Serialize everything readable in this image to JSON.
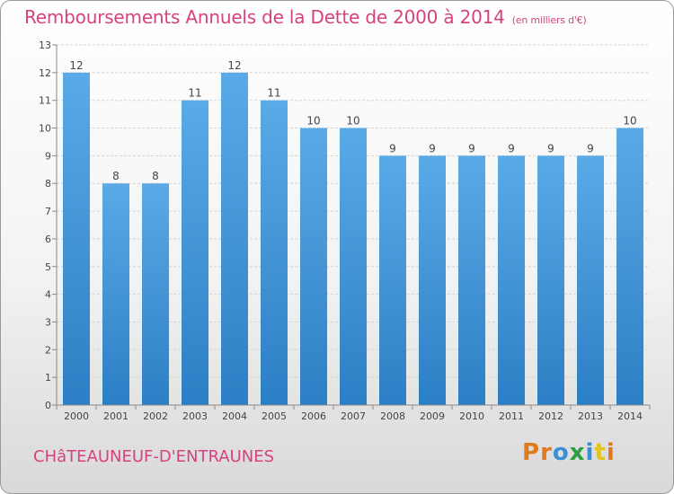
{
  "header": {
    "title": "Remboursements Annuels de la Dette de 2000 à 2014",
    "unit": "(en milliers d'€)"
  },
  "footer": {
    "commune": "CHâTEAUNEUF-D'ENTRAUNES",
    "logo": "Proxiti"
  },
  "colors": {
    "title": "#d6427f",
    "bar_top": "#5aaae8",
    "bar_bottom": "#2b7fc4",
    "logo_letters": [
      "#e07a1f",
      "#e07a1f",
      "#3a8fd6",
      "#2e9e3e",
      "#3a8fd6",
      "#e0c41f",
      "#e07a1f"
    ]
  },
  "chart_data": {
    "type": "bar",
    "categories": [
      "2000",
      "2001",
      "2002",
      "2003",
      "2004",
      "2005",
      "2006",
      "2007",
      "2008",
      "2009",
      "2010",
      "2011",
      "2012",
      "2013",
      "2014"
    ],
    "values": [
      12,
      8,
      8,
      11,
      12,
      11,
      10,
      10,
      9,
      9,
      9,
      9,
      9,
      9,
      10
    ],
    "ylim": [
      0,
      13
    ],
    "yticks": [
      0,
      1,
      2,
      3,
      4,
      5,
      6,
      7,
      8,
      9,
      10,
      11,
      12,
      13
    ],
    "grid": true,
    "xlabel": "",
    "ylabel": ""
  }
}
